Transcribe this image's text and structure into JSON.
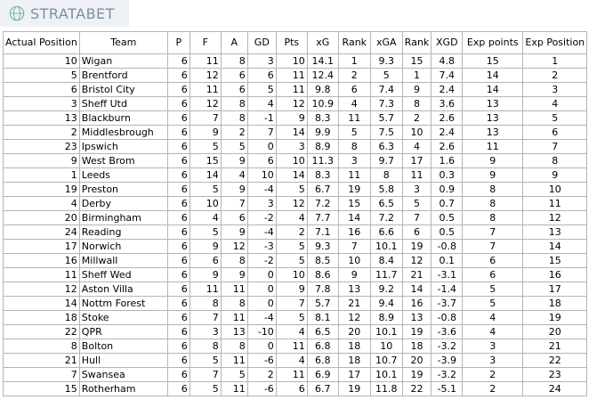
{
  "brand": {
    "name": "STRATABET",
    "icon": "globe-icon"
  },
  "columns": [
    "Actual Position",
    "Team",
    "P",
    "F",
    "A",
    "GD",
    "Pts",
    "xG",
    "Rank",
    "xGA",
    "Rank",
    "XGD",
    "Exp points",
    "Exp Position"
  ],
  "rows": [
    [
      "10",
      "Wigan",
      "6",
      "11",
      "8",
      "3",
      "10",
      "14.1",
      "1",
      "9.3",
      "15",
      "4.8",
      "15",
      "1"
    ],
    [
      "5",
      "Brentford",
      "6",
      "12",
      "6",
      "6",
      "11",
      "12.4",
      "2",
      "5",
      "1",
      "7.4",
      "14",
      "2"
    ],
    [
      "6",
      "Bristol City",
      "6",
      "11",
      "6",
      "5",
      "11",
      "9.8",
      "6",
      "7.4",
      "9",
      "2.4",
      "14",
      "3"
    ],
    [
      "3",
      "Sheff Utd",
      "6",
      "12",
      "8",
      "4",
      "12",
      "10.9",
      "4",
      "7.3",
      "8",
      "3.6",
      "13",
      "4"
    ],
    [
      "13",
      "Blackburn",
      "6",
      "7",
      "8",
      "-1",
      "9",
      "8.3",
      "11",
      "5.7",
      "2",
      "2.6",
      "13",
      "5"
    ],
    [
      "2",
      "Middlesbrough",
      "6",
      "9",
      "2",
      "7",
      "14",
      "9.9",
      "5",
      "7.5",
      "10",
      "2.4",
      "13",
      "6"
    ],
    [
      "23",
      "Ipswich",
      "6",
      "5",
      "5",
      "0",
      "3",
      "8.9",
      "8",
      "6.3",
      "4",
      "2.6",
      "11",
      "7"
    ],
    [
      "9",
      "West Brom",
      "6",
      "15",
      "9",
      "6",
      "10",
      "11.3",
      "3",
      "9.7",
      "17",
      "1.6",
      "9",
      "8"
    ],
    [
      "1",
      "Leeds",
      "6",
      "14",
      "4",
      "10",
      "14",
      "8.3",
      "11",
      "8",
      "11",
      "0.3",
      "9",
      "9"
    ],
    [
      "19",
      "Preston",
      "6",
      "5",
      "9",
      "-4",
      "5",
      "6.7",
      "19",
      "5.8",
      "3",
      "0.9",
      "8",
      "10"
    ],
    [
      "4",
      "Derby",
      "6",
      "10",
      "7",
      "3",
      "12",
      "7.2",
      "15",
      "6.5",
      "5",
      "0.7",
      "8",
      "11"
    ],
    [
      "20",
      "Birmingham",
      "6",
      "4",
      "6",
      "-2",
      "4",
      "7.7",
      "14",
      "7.2",
      "7",
      "0.5",
      "8",
      "12"
    ],
    [
      "24",
      "Reading",
      "6",
      "5",
      "9",
      "-4",
      "2",
      "7.1",
      "16",
      "6.6",
      "6",
      "0.5",
      "7",
      "13"
    ],
    [
      "17",
      "Norwich",
      "6",
      "9",
      "12",
      "-3",
      "5",
      "9.3",
      "7",
      "10.1",
      "19",
      "-0.8",
      "7",
      "14"
    ],
    [
      "16",
      "Millwall",
      "6",
      "6",
      "8",
      "-2",
      "5",
      "8.5",
      "10",
      "8.4",
      "12",
      "0.1",
      "6",
      "15"
    ],
    [
      "11",
      "Sheff Wed",
      "6",
      "9",
      "9",
      "0",
      "10",
      "8.6",
      "9",
      "11.7",
      "21",
      "-3.1",
      "6",
      "16"
    ],
    [
      "12",
      "Aston Villa",
      "6",
      "11",
      "11",
      "0",
      "9",
      "7.8",
      "13",
      "9.2",
      "14",
      "-1.4",
      "5",
      "17"
    ],
    [
      "14",
      "Nottm Forest",
      "6",
      "8",
      "8",
      "0",
      "7",
      "5.7",
      "21",
      "9.4",
      "16",
      "-3.7",
      "5",
      "18"
    ],
    [
      "18",
      "Stoke",
      "6",
      "7",
      "11",
      "-4",
      "5",
      "8.1",
      "12",
      "8.9",
      "13",
      "-0.8",
      "4",
      "19"
    ],
    [
      "22",
      "QPR",
      "6",
      "3",
      "13",
      "-10",
      "4",
      "6.5",
      "20",
      "10.1",
      "19",
      "-3.6",
      "4",
      "20"
    ],
    [
      "8",
      "Bolton",
      "6",
      "8",
      "8",
      "0",
      "11",
      "6.8",
      "18",
      "10",
      "18",
      "-3.2",
      "3",
      "21"
    ],
    [
      "21",
      "Hull",
      "6",
      "5",
      "11",
      "-6",
      "4",
      "6.8",
      "18",
      "10.7",
      "20",
      "-3.9",
      "3",
      "22"
    ],
    [
      "7",
      "Swansea",
      "6",
      "7",
      "5",
      "2",
      "11",
      "6.9",
      "17",
      "10.1",
      "19",
      "-3.2",
      "2",
      "23"
    ],
    [
      "15",
      "Rotherham",
      "6",
      "5",
      "11",
      "-6",
      "6",
      "6.7",
      "19",
      "11.8",
      "22",
      "-5.1",
      "2",
      "24"
    ]
  ]
}
